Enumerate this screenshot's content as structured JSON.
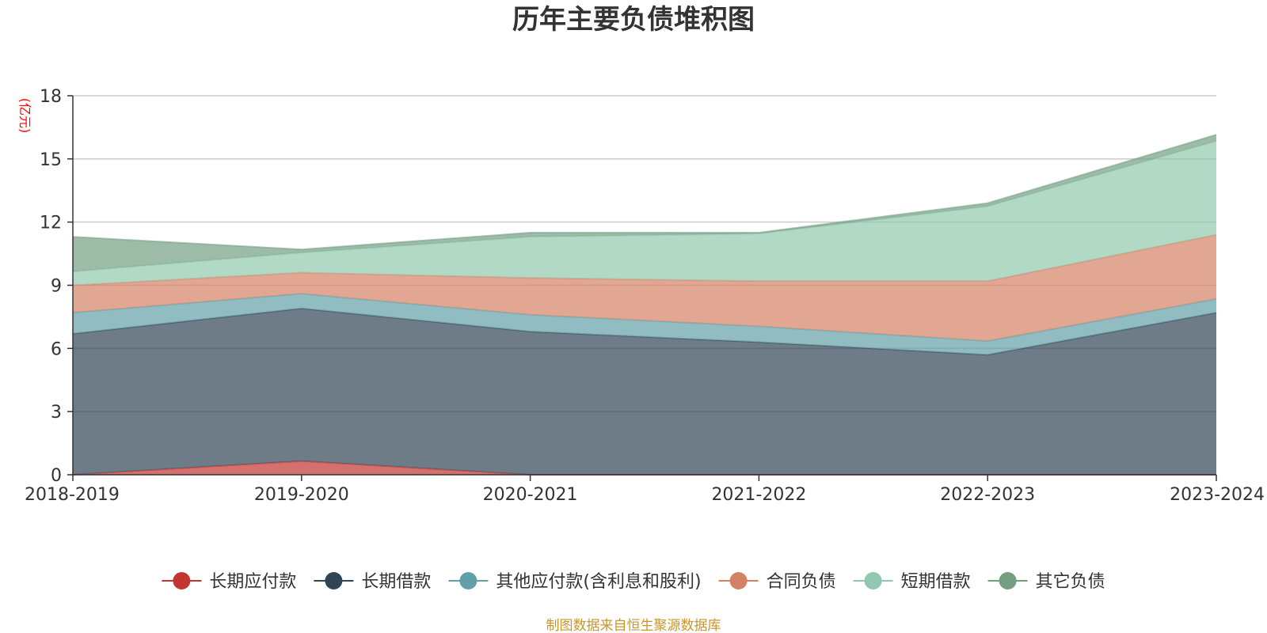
{
  "chart_data": {
    "type": "area",
    "stacked": true,
    "title": "历年主要负债堆积图",
    "ylabel": "(亿元)",
    "xlabel": "",
    "categories": [
      "2018-2019",
      "2019-2020",
      "2020-2021",
      "2021-2022",
      "2022-2023",
      "2023-2024"
    ],
    "ylim": [
      0,
      18
    ],
    "yticks": [
      0,
      3,
      6,
      9,
      12,
      15,
      18
    ],
    "grid": true,
    "legend_position": "bottom",
    "series": [
      {
        "name": "长期应付款",
        "color": "#c23531",
        "values": [
          0.0,
          0.65,
          0.0,
          0.0,
          0.0,
          0.0
        ]
      },
      {
        "name": "长期借款",
        "color": "#2f4554",
        "values": [
          6.7,
          7.25,
          6.8,
          6.3,
          5.7,
          7.7
        ]
      },
      {
        "name": "其他应付款(含利息和股利)",
        "color": "#61a0a8",
        "values": [
          1.0,
          0.7,
          0.8,
          0.75,
          0.65,
          0.65
        ]
      },
      {
        "name": "合同负债",
        "color": "#d48265",
        "values": [
          1.3,
          1.0,
          1.75,
          2.15,
          2.85,
          3.05
        ]
      },
      {
        "name": "短期借款",
        "color": "#91c7ae",
        "values": [
          0.65,
          0.95,
          1.95,
          2.25,
          3.55,
          4.45
        ]
      },
      {
        "name": "其它负债",
        "color": "#749f83",
        "values": [
          1.65,
          0.15,
          0.2,
          0.05,
          0.15,
          0.3
        ]
      }
    ]
  },
  "source_note": "制图数据来自恒生聚源数据库",
  "colors": {
    "axis": "#333333",
    "grid": "#cccccc",
    "ylabel": "#ff0000",
    "source": "#c9962b"
  }
}
